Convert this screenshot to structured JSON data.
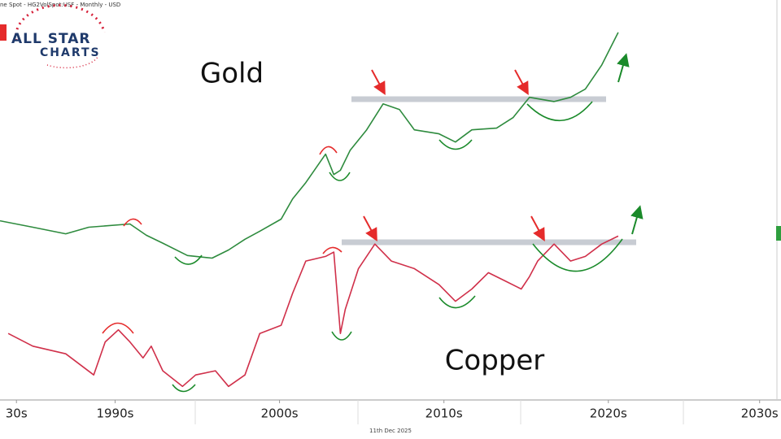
{
  "header": "ne Spot - HG2VolSpot:USF - Monthly - USD",
  "logo": {
    "line1": "ALL STAR",
    "line2": "CHARTS"
  },
  "footer_date": "11th Dec 2025",
  "chart_data": {
    "type": "line",
    "xlim": [
      1983,
      2030.5
    ],
    "xticks": [
      {
        "value": 1984,
        "label": "30s"
      },
      {
        "value": 1990,
        "label": "1990s"
      },
      {
        "value": 2000,
        "label": "2000s"
      },
      {
        "value": 2010,
        "label": "2010s"
      },
      {
        "value": 2020,
        "label": "2020s"
      },
      {
        "value": 2029.2,
        "label": "2030s"
      }
    ],
    "ylim": [
      60,
      5000
    ],
    "ylog": true,
    "y2lim": [
      0.53,
      71
    ],
    "y2log": true,
    "series": [
      {
        "name": "Gold",
        "color": "#2e8b3e",
        "x": [
          1983,
          1985,
          1987,
          1988.4,
          1990.9,
          1991.9,
          1992.9,
          1994.4,
          1995.9,
          1996.9,
          1997.9,
          1998.8,
          2000.1,
          2000.8,
          2001.6,
          2002.8,
          2003.3,
          2003.7,
          2004.3,
          2005.3,
          2006.3,
          2007.3,
          2008.2,
          2009.7,
          2010.7,
          2011.7,
          2013.2,
          2014.2,
          2015.2,
          2016.7,
          2017.7,
          2018.6,
          2019.6,
          2020.6
        ],
        "values": [
          490,
          454,
          420,
          454,
          472,
          413,
          376,
          325,
          315,
          347,
          394,
          433,
          500,
          635,
          770,
          1078,
          847,
          890,
          1130,
          1437,
          1953,
          1825,
          1437,
          1370,
          1244,
          1437,
          1466,
          1660,
          2110,
          2008,
          2110,
          2325,
          3096,
          4545
        ]
      },
      {
        "name": "Copper",
        "color": "#d0304a",
        "axis": "y2",
        "x": [
          1983.5,
          1985,
          1987,
          1988.7,
          1989.4,
          1990.2,
          1990.9,
          1991.7,
          1992.2,
          1992.9,
          1994.1,
          1994.9,
          1996.1,
          1996.9,
          1997.9,
          1998.8,
          2000.1,
          2000.8,
          2001.6,
          2002.8,
          2003.3,
          2003.7,
          2004,
          2004.8,
          2005.8,
          2006.8,
          2008.2,
          2009.7,
          2010.7,
          2011.7,
          2012.7,
          2013.7,
          2014.7,
          2015.2,
          2015.7,
          2016.7,
          2017.7,
          2018.6,
          2019.6,
          2020.6
        ],
        "values": [
          1.24,
          1.05,
          0.95,
          0.72,
          1.11,
          1.3,
          1.11,
          0.9,
          1.05,
          0.76,
          0.62,
          0.72,
          0.76,
          0.62,
          0.72,
          1.24,
          1.38,
          2.1,
          3.2,
          3.4,
          3.6,
          1.24,
          1.7,
          2.9,
          4.0,
          3.2,
          2.9,
          2.35,
          1.89,
          2.22,
          2.75,
          2.47,
          2.22,
          2.61,
          3.2,
          4.0,
          3.2,
          3.4,
          4.0,
          4.44
        ]
      }
    ]
  }
}
